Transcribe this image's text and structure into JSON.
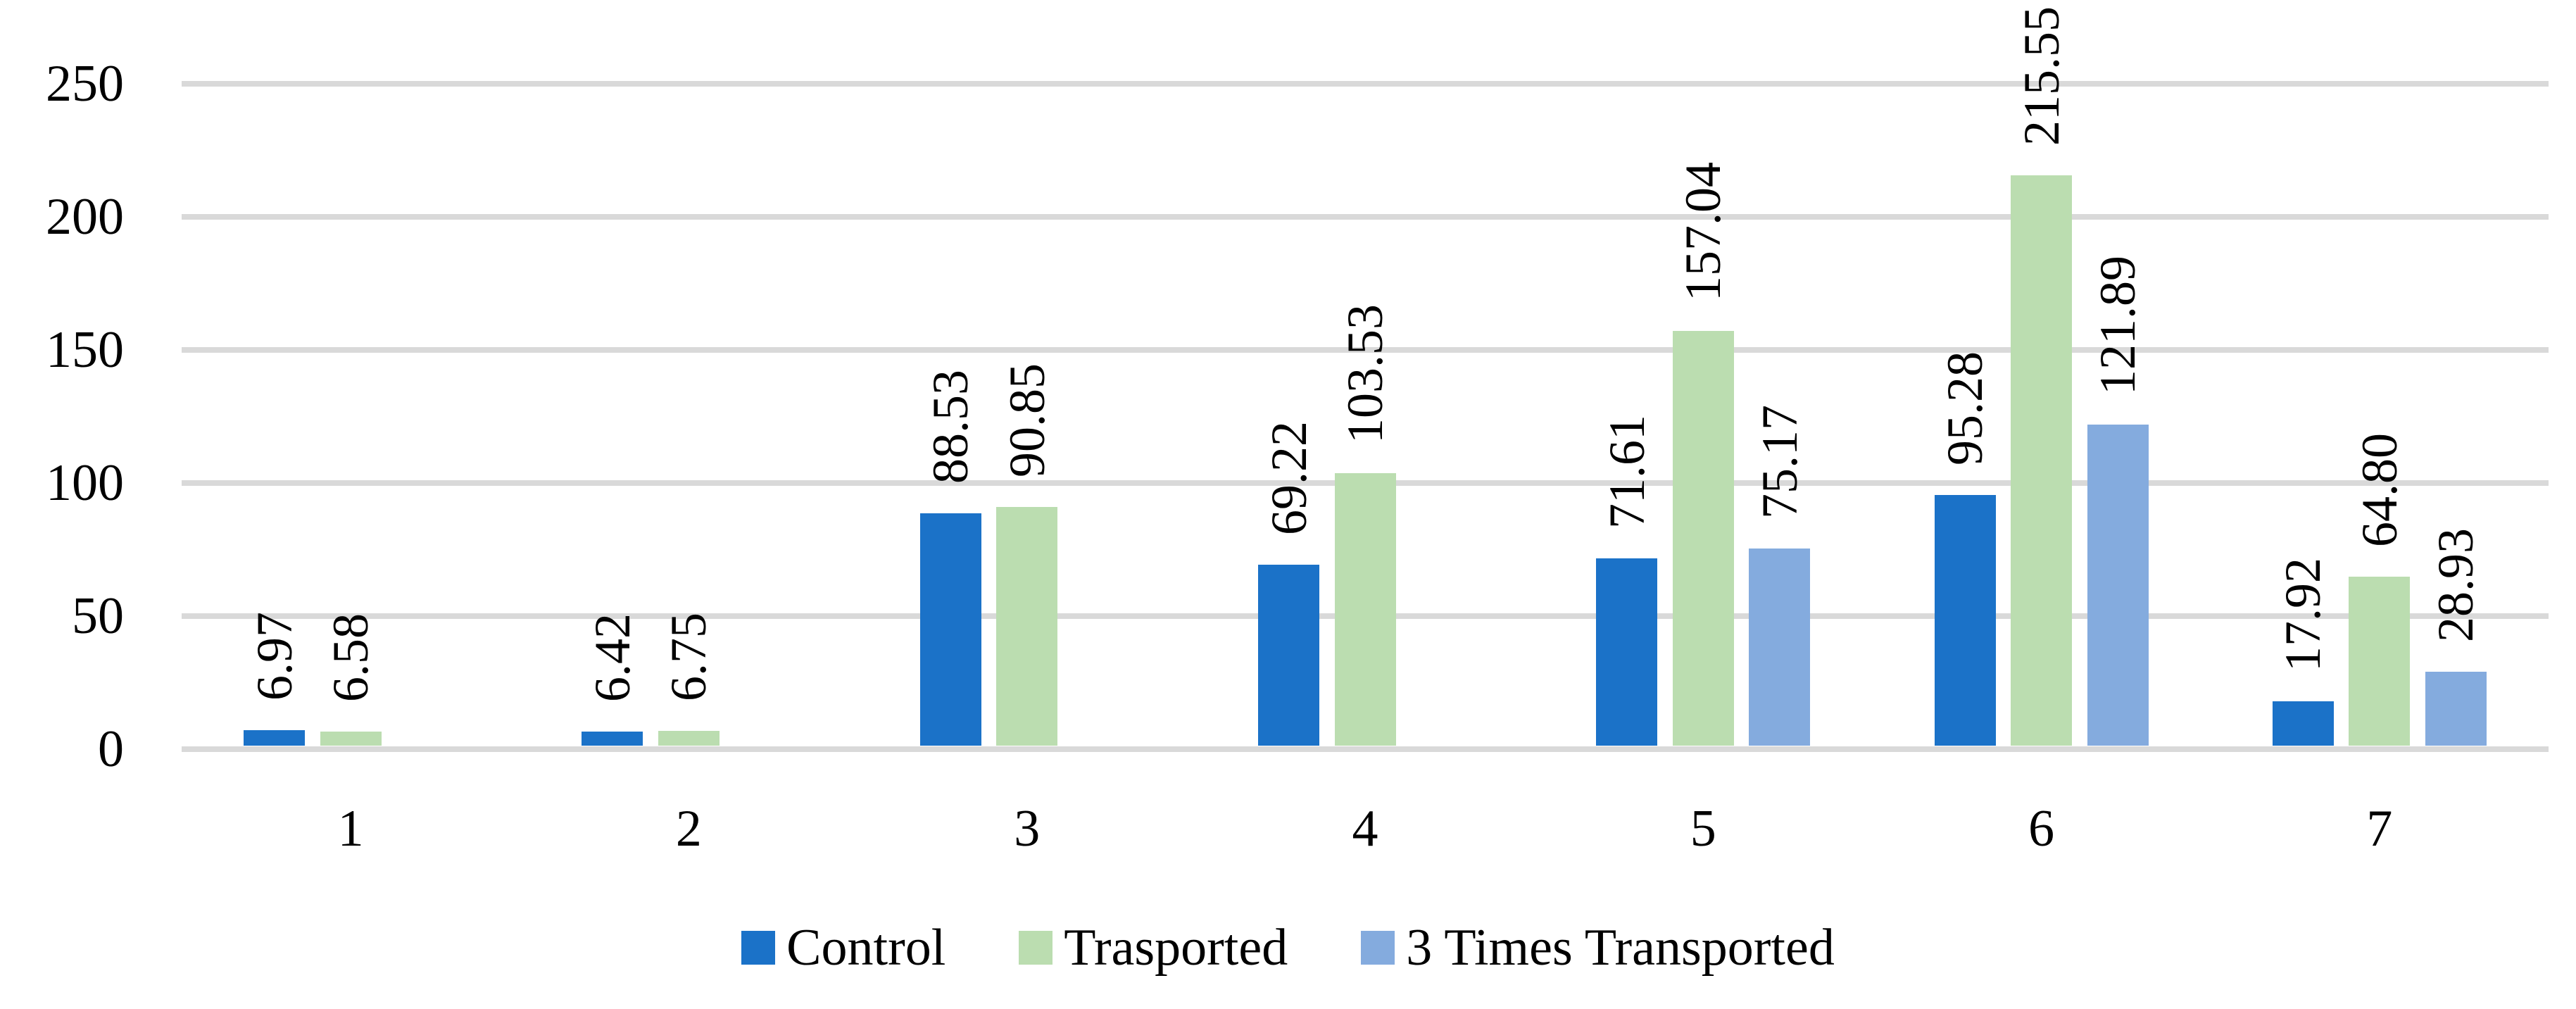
{
  "chart_data": {
    "type": "bar",
    "title": "",
    "xlabel": "",
    "ylabel": "",
    "categories": [
      "1",
      "2",
      "3",
      "4",
      "5",
      "6",
      "7"
    ],
    "series": [
      {
        "name": "Control",
        "color": "#1B72C8",
        "values": [
          6.97,
          6.42,
          88.53,
          69.22,
          71.61,
          95.28,
          17.92
        ]
      },
      {
        "name": "Trasported",
        "color": "#BBDDB0",
        "values": [
          6.58,
          6.75,
          90.85,
          103.53,
          157.04,
          215.55,
          64.8
        ]
      },
      {
        "name": "3 Times Transported",
        "color": "#84ABDE",
        "values": [
          null,
          null,
          null,
          null,
          75.17,
          121.89,
          28.93
        ]
      }
    ],
    "ylim": [
      0,
      250
    ],
    "yticks": [
      0,
      50,
      100,
      150,
      200,
      250
    ],
    "grid": "horizontal",
    "legend_position": "bottom",
    "value_labels": "outside-end, rotated 90deg counterclockwise, 2 decimal places"
  },
  "colors": {
    "background": "#FFFFFF",
    "gridline": "#D9D9D9",
    "text": "#000000"
  }
}
